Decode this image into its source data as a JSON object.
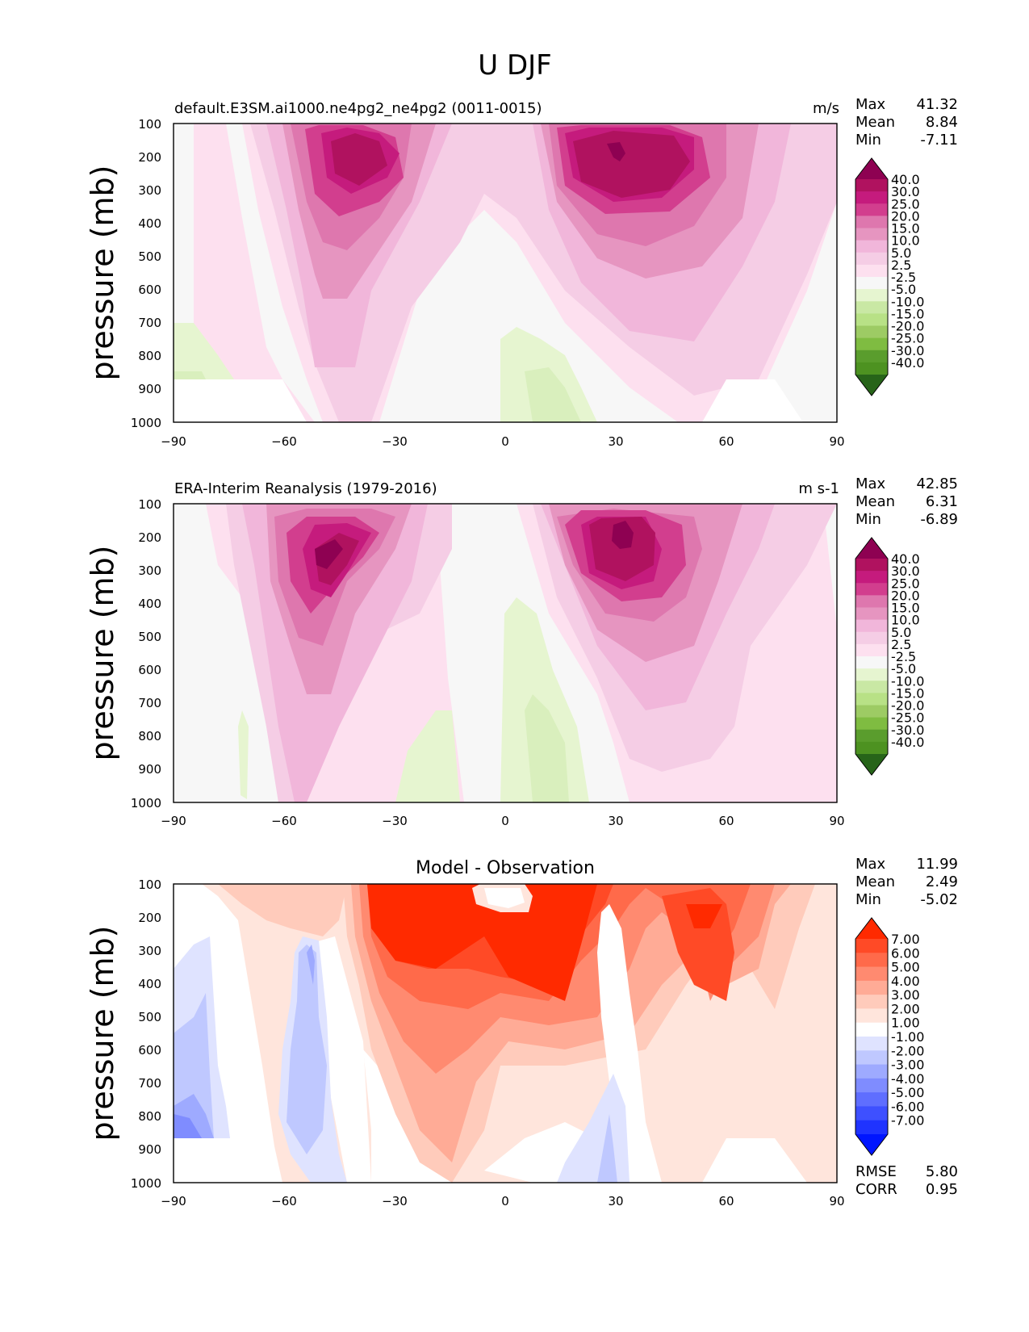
{
  "figure_title": "U DJF",
  "colorbar_top": {
    "labels": [
      "40.0",
      "30.0",
      "25.0",
      "20.0",
      "15.0",
      "10.0",
      "5.0",
      "2.5",
      "-2.5",
      "-5.0",
      "-10.0",
      "-15.0",
      "-20.0",
      "-25.0",
      "-30.0",
      "-40.0"
    ],
    "colors": [
      "#8e0152",
      "#b0125f",
      "#c51b7d",
      "#d23e8e",
      "#de77ae",
      "#e695c0",
      "#f1b6da",
      "#f5cde5",
      "#fde0ef",
      "#f7f7f7",
      "#e6f5d0",
      "#c9e8a4",
      "#b8e186",
      "#9dcb64",
      "#7fbc41",
      "#5a9d2d",
      "#4d9221",
      "#276419"
    ]
  },
  "colorbar_diff": {
    "labels": [
      "7.00",
      "6.00",
      "5.00",
      "4.00",
      "3.00",
      "2.00",
      "1.00",
      "-1.00",
      "-2.00",
      "-3.00",
      "-4.00",
      "-5.00",
      "-6.00",
      "-7.00"
    ],
    "colors": [
      "#ff2a00",
      "#ff4a26",
      "#ff6a4a",
      "#ff8a70",
      "#ffab96",
      "#ffcbbb",
      "#ffe5dc",
      "#ffffff",
      "#dfe3ff",
      "#bfc8ff",
      "#9eaaff",
      "#7f8cff",
      "#5f6eff",
      "#3e50ff",
      "#1f33ff",
      "#0015ff"
    ]
  },
  "chart_data": [
    {
      "type": "heatmap",
      "title": "default.E3SM.ai1000.ne4pg2_ne4pg2 (0011-0015)",
      "units": "m/s",
      "ylabel": "pressure (mb)",
      "xlim": [
        -90,
        90
      ],
      "ylim": [
        1000,
        100
      ],
      "xticks": [
        "−90",
        "−60",
        "−30",
        "0",
        "30",
        "60",
        "90"
      ],
      "yticks": [
        "100",
        "200",
        "300",
        "400",
        "500",
        "600",
        "700",
        "800",
        "900",
        "1000"
      ],
      "stats": [
        {
          "label": "Max",
          "value": "41.32"
        },
        {
          "label": "Mean",
          "value": "8.84"
        },
        {
          "label": "Min",
          "value": "-7.11"
        }
      ],
      "contour_levels": [
        -40,
        -30,
        -25,
        -20,
        -15,
        -10,
        -5,
        -2.5,
        2.5,
        5,
        10,
        15,
        20,
        25,
        30,
        40
      ],
      "jets": [
        {
          "lat": -40,
          "p": 200,
          "max": 36
        },
        {
          "lat": 30,
          "p": 200,
          "max": 41.32
        }
      ],
      "easterlies": [
        {
          "lat": 12,
          "p": 950,
          "min": -7.11
        },
        {
          "lat": -87,
          "p": 800,
          "min": -3
        }
      ]
    },
    {
      "type": "heatmap",
      "title": "ERA-Interim Reanalysis (1979-2016)",
      "units": "m s-1",
      "ylabel": "pressure (mb)",
      "xlim": [
        -90,
        90
      ],
      "ylim": [
        1000,
        100
      ],
      "xticks": [
        "−90",
        "−60",
        "−30",
        "0",
        "30",
        "60",
        "90"
      ],
      "yticks": [
        "100",
        "200",
        "300",
        "400",
        "500",
        "600",
        "700",
        "800",
        "900",
        "1000"
      ],
      "stats": [
        {
          "label": "Max",
          "value": "42.85"
        },
        {
          "label": "Mean",
          "value": "6.31"
        },
        {
          "label": "Min",
          "value": "-6.89"
        }
      ],
      "contour_levels": [
        -40,
        -30,
        -25,
        -20,
        -15,
        -10,
        -5,
        -2.5,
        2.5,
        5,
        10,
        15,
        20,
        25,
        30,
        40
      ],
      "jets": [
        {
          "lat": -48,
          "p": 230,
          "max": 33
        },
        {
          "lat": 32,
          "p": 220,
          "max": 42.85
        }
      ],
      "easterlies": [
        {
          "lat": 8,
          "p": 850,
          "min": -6.89
        },
        {
          "lat": -20,
          "p": 900,
          "min": -3
        }
      ]
    },
    {
      "type": "heatmap",
      "title": "Model - Observation",
      "units": "",
      "ylabel": "pressure (mb)",
      "xlim": [
        -90,
        90
      ],
      "ylim": [
        1000,
        100
      ],
      "xticks": [
        "−90",
        "−60",
        "−30",
        "0",
        "30",
        "60",
        "90"
      ],
      "yticks": [
        "100",
        "200",
        "300",
        "400",
        "500",
        "600",
        "700",
        "800",
        "900",
        "1000"
      ],
      "stats": [
        {
          "label": "Max",
          "value": "11.99"
        },
        {
          "label": "Mean",
          "value": "2.49"
        },
        {
          "label": "Min",
          "value": "-5.02"
        }
      ],
      "metrics": [
        {
          "label": "RMSE",
          "value": "5.80"
        },
        {
          "label": "CORR",
          "value": "0.95"
        }
      ],
      "contour_levels": [
        -7,
        -6,
        -5,
        -4,
        -3,
        -2,
        -1,
        1,
        2,
        3,
        4,
        5,
        6,
        7
      ]
    }
  ]
}
